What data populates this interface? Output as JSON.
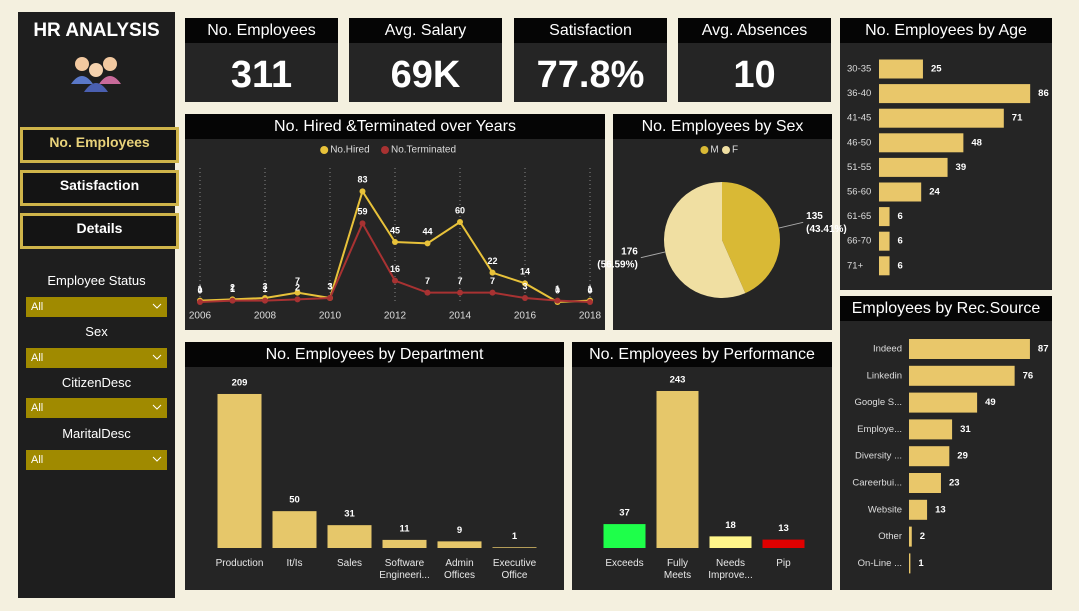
{
  "sidebar": {
    "title": "HR ANALYSIS",
    "buttons": [
      "No. Employees",
      "Satisfaction",
      "Details"
    ],
    "filters": [
      {
        "label": "Employee Status",
        "value": "All"
      },
      {
        "label": "Sex",
        "value": "All"
      },
      {
        "label": "CitizenDesc",
        "value": "All"
      },
      {
        "label": "MaritalDesc",
        "value": "All"
      }
    ]
  },
  "kpis": [
    {
      "title": "No. Employees",
      "value": 311
    },
    {
      "title": "Avg. Salary",
      "value": "69K"
    },
    {
      "title": "Satisfaction",
      "value": "77.8%"
    },
    {
      "title": "Avg. Absences",
      "value": 10
    }
  ],
  "chart_data": [
    {
      "type": "line",
      "title": "No. Hired &Terminated over Years",
      "x": [
        2006,
        2007,
        2008,
        2009,
        2010,
        2011,
        2012,
        2013,
        2014,
        2015,
        2016,
        2017,
        2018
      ],
      "xlim": [
        2006,
        2018
      ],
      "xticks": [
        2006,
        2008,
        2010,
        2012,
        2014,
        2016,
        2018
      ],
      "ylim": [
        0,
        90
      ],
      "grid": true,
      "series": [
        {
          "name": "No.Hired",
          "color": "#e8c23a",
          "values": [
            1,
            2,
            3,
            7,
            3,
            83,
            45,
            44,
            60,
            22,
            14,
            0,
            1
          ]
        },
        {
          "name": "No.Terminated",
          "color": "#a83232",
          "values": [
            0,
            1,
            1,
            2,
            3,
            59,
            16,
            7,
            7,
            7,
            3,
            1,
            0
          ]
        }
      ]
    },
    {
      "type": "pie",
      "title": "No. Employees by Sex",
      "categories": [
        "M",
        "F"
      ],
      "values": [
        135,
        176
      ],
      "percent_labels": [
        "(43.41%)",
        "(56.59%)"
      ],
      "colors": [
        "#d9b935",
        "#f0dfa2"
      ]
    },
    {
      "type": "bar",
      "orientation": "horizontal",
      "title": "No. Employees by Age",
      "categories": [
        "30-35",
        "36-40",
        "41-45",
        "46-50",
        "51-55",
        "56-60",
        "61-65",
        "66-70",
        "71+"
      ],
      "values": [
        25,
        86,
        71,
        48,
        39,
        24,
        6,
        6,
        6
      ],
      "color": "#e9c76a",
      "xlim": [
        0,
        95
      ]
    },
    {
      "type": "bar",
      "orientation": "horizontal",
      "title": "Employees by Rec.Source",
      "categories": [
        "Indeed",
        "Linkedin",
        "Google S...",
        "Employe...",
        "Diversity ...",
        "Careerbui...",
        "Website",
        "Other",
        "On-Line ..."
      ],
      "values": [
        87,
        76,
        49,
        31,
        29,
        23,
        13,
        2,
        1
      ],
      "color": "#e9c76a",
      "xlim": [
        0,
        100
      ]
    },
    {
      "type": "bar",
      "orientation": "vertical",
      "title": "No. Employees by Department",
      "categories": [
        "Production",
        "It/Is",
        "Sales",
        "Software Engineeri...",
        "Admin Offices",
        "Executive Office"
      ],
      "values": [
        209,
        50,
        31,
        11,
        9,
        1
      ],
      "color": "#e6c76a",
      "ylim": [
        0,
        230
      ]
    },
    {
      "type": "bar",
      "orientation": "vertical",
      "title": "No. Employees by Performance",
      "categories": [
        "Exceeds",
        "Fully Meets",
        "Needs Improve...",
        "Pip"
      ],
      "values": [
        37,
        243,
        18,
        13
      ],
      "colors": [
        "#1eff4a",
        "#e6c76a",
        "#fff58a",
        "#e00000"
      ],
      "ylim": [
        0,
        260
      ]
    }
  ]
}
